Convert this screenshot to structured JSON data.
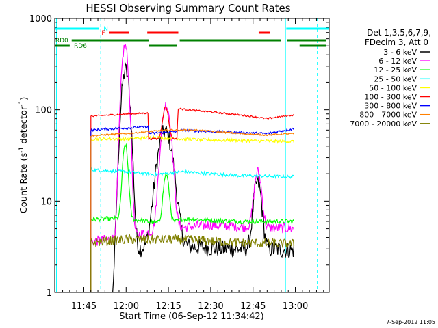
{
  "chart_data": {
    "type": "line",
    "title": "HESSI Observing Summary Count Rates",
    "xlabel": "Start Time (06-Sep-12 11:34:42)",
    "ylabel": "Count Rate (s",
    "ylabel_sup": "-1",
    "ylabel_tail": " detector",
    "ylabel_sup2": "-1",
    "ylabel_close": ")",
    "ylog": true,
    "xlim": [
      694.7,
      792
    ],
    "ylim": [
      1,
      1000
    ],
    "xticks": [
      {
        "v": 705,
        "label": "11:45"
      },
      {
        "v": 720,
        "label": "12:00"
      },
      {
        "v": 735,
        "label": "12:15"
      },
      {
        "v": 750,
        "label": "12:30"
      },
      {
        "v": 765,
        "label": "12:45"
      },
      {
        "v": 780,
        "label": "13:00"
      }
    ],
    "yticks": [
      {
        "v": 1,
        "label": "1"
      },
      {
        "v": 10,
        "label": "10"
      },
      {
        "v": 100,
        "label": "100"
      },
      {
        "v": 1000,
        "label": "1000"
      }
    ],
    "legend_lines": [
      "Det 1,3,5,6,7,9,",
      "FDecim 3, Att 0"
    ],
    "legend_position": "right",
    "timestamp": "7-Sep-2012 11:05",
    "vlines": {
      "color": "#00ffff",
      "solid": [
        {
          "x": 695.3
        },
        {
          "x": 776.5
        }
      ],
      "dashed": [
        {
          "x": 711.0
        },
        {
          "x": 787.8
        }
      ]
    },
    "flags": [
      {
        "label": "N",
        "color": "#00ffff",
        "row": 0,
        "segments": [
          [
            694.7,
            710.3
          ],
          [
            776.8,
            792
          ]
        ],
        "label_x": 712.0
      },
      {
        "label": "F",
        "color": "#ff0000",
        "row": 1,
        "segments": [
          [
            714.0,
            721.0
          ],
          [
            727.5,
            738.5
          ],
          [
            767.0,
            771.0
          ]
        ],
        "label_x": 711.3
      },
      {
        "label": "RD0",
        "color": "#008000",
        "row": 2,
        "segments": [
          [
            700.7,
            728.0
          ],
          [
            739.0,
            775.0
          ],
          [
            777.0,
            791.0
          ]
        ],
        "label_x": 694.9
      },
      {
        "label": "RD6",
        "color": "#008000",
        "row": 3,
        "segments": [
          [
            694.7,
            700.0
          ],
          [
            728.0,
            738.0
          ],
          [
            781.5,
            791.0
          ]
        ],
        "label_x": 701.5
      }
    ],
    "series": [
      {
        "name": "3 - 6 keV",
        "color": "#000000",
        "start": 707.5,
        "end": 779.5,
        "gaps": [
          [
            711,
            712.8
          ]
        ],
        "base": [
          [
            707.5,
            0.6
          ],
          [
            715,
            0.7
          ],
          [
            718,
            2.8
          ],
          [
            725,
            3.0
          ],
          [
            740,
            3.2
          ],
          [
            755,
            3.0
          ],
          [
            770,
            3.0
          ],
          [
            779.5,
            2.9
          ]
        ],
        "peaks": [
          [
            719.8,
            270,
            1.2
          ],
          [
            733.8,
            55,
            2.2
          ],
          [
            766.6,
            13,
            1.2
          ]
        ],
        "noise": 0.22
      },
      {
        "name": "6 - 12 keV",
        "color": "#ff00ff",
        "start": 707.5,
        "end": 779.5,
        "gaps": [],
        "base": [
          [
            707.5,
            3.6
          ],
          [
            720,
            4.0
          ],
          [
            735,
            5.0
          ],
          [
            750,
            5.5
          ],
          [
            765,
            5.2
          ],
          [
            779.5,
            5.0
          ]
        ],
        "peaks": [
          [
            719.6,
            500,
            1.0
          ],
          [
            734.2,
            108,
            1.4
          ],
          [
            766.7,
            16,
            1.1
          ]
        ],
        "noise": 0.13
      },
      {
        "name": "12 - 25 keV",
        "color": "#00ff00",
        "start": 707.5,
        "end": 779.5,
        "gaps": [],
        "base": [
          [
            707.5,
            6.3
          ],
          [
            720,
            6.5
          ],
          [
            735,
            5.5
          ],
          [
            740,
            6.4
          ],
          [
            760,
            6.0
          ],
          [
            779.5,
            6.0
          ]
        ],
        "peaks": [
          [
            719.7,
            35,
            0.8
          ],
          [
            734.2,
            14,
            0.9
          ]
        ],
        "noise": 0.06
      },
      {
        "name": "25 - 50 keV",
        "color": "#00ffff",
        "start": 707.5,
        "end": 779.5,
        "gaps": [],
        "base": [
          [
            707.5,
            22
          ],
          [
            720,
            21
          ],
          [
            730,
            19.5
          ],
          [
            740,
            21
          ],
          [
            760,
            19
          ],
          [
            779.5,
            18.5
          ]
        ],
        "peaks": [],
        "noise": 0.04
      },
      {
        "name": "50 - 100 keV",
        "color": "#ffff00",
        "start": 707.5,
        "end": 779.5,
        "gaps": [],
        "base": [
          [
            707.5,
            48
          ],
          [
            720,
            48
          ],
          [
            730,
            50
          ],
          [
            745,
            47
          ],
          [
            760,
            46
          ],
          [
            779.5,
            45
          ]
        ],
        "peaks": [],
        "noise": 0.04
      },
      {
        "name": "100 - 300 keV",
        "color": "#ff0000",
        "start": 707.5,
        "end": 779.5,
        "gaps": [],
        "base": [
          [
            707.5,
            85
          ],
          [
            720,
            90
          ],
          [
            727.8,
            92
          ],
          [
            727.9,
            48
          ],
          [
            736,
            48
          ],
          [
            738.2,
            48
          ],
          [
            738.3,
            103
          ],
          [
            745,
            98
          ],
          [
            760,
            88
          ],
          [
            770,
            80
          ],
          [
            779.5,
            88
          ]
        ],
        "peaks": [
          [
            734.0,
            60,
            0.9
          ]
        ],
        "noise": 0.02
      },
      {
        "name": "300 - 800 keV",
        "color": "#0000ff",
        "start": 707.5,
        "end": 779.5,
        "gaps": [],
        "base": [
          [
            707.5,
            60
          ],
          [
            715,
            62
          ],
          [
            727.8,
            65
          ],
          [
            727.9,
            55
          ],
          [
            738.2,
            58
          ],
          [
            738.3,
            60
          ],
          [
            750,
            58
          ],
          [
            770,
            55
          ],
          [
            779.5,
            62
          ]
        ],
        "peaks": [],
        "noise": 0.03
      },
      {
        "name": "800 - 7000 keV",
        "color": "#ff8000",
        "start": 707.5,
        "end": 779.5,
        "gaps": [],
        "base": [
          [
            707.5,
            52
          ],
          [
            720,
            55
          ],
          [
            735,
            60
          ],
          [
            745,
            60
          ],
          [
            760,
            55
          ],
          [
            770,
            53
          ],
          [
            779.5,
            55
          ]
        ],
        "peaks": [],
        "noise": 0.02
      },
      {
        "name": "7000 - 20000 keV",
        "color": "#808000",
        "start": 707.5,
        "end": 779.5,
        "gaps": [],
        "base": [
          [
            707.5,
            3.5
          ],
          [
            720,
            3.8
          ],
          [
            740,
            3.8
          ],
          [
            760,
            3.5
          ],
          [
            779.5,
            3.4
          ]
        ],
        "peaks": [],
        "noise": 0.12
      }
    ]
  }
}
